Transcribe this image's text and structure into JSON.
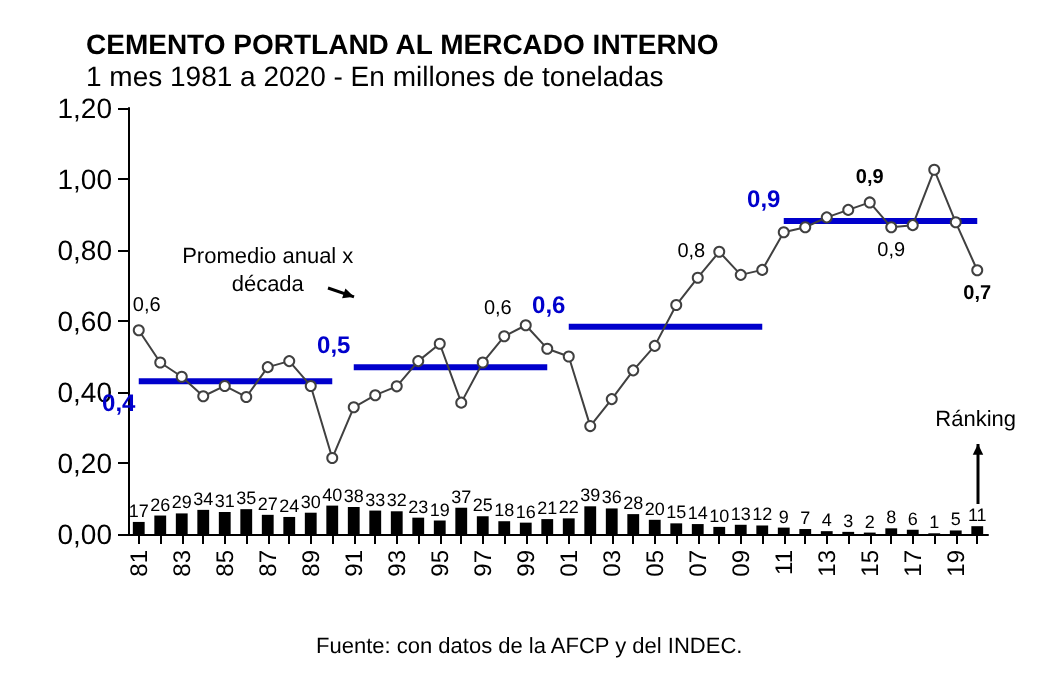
{
  "chart_data": {
    "type": "line",
    "title": "CEMENTO PORTLAND AL MERCADO INTERNO",
    "subtitle": "1 mes 1981 a 2020 - En millones de toneladas",
    "categories": [
      "81",
      null,
      "83",
      null,
      "85",
      null,
      "87",
      null,
      "89",
      null,
      "91",
      null,
      "93",
      null,
      "95",
      null,
      "97",
      null,
      "99",
      null,
      "01",
      null,
      "03",
      null,
      "05",
      null,
      "07",
      null,
      "09",
      null,
      "11",
      null,
      "13",
      null,
      "15",
      null,
      "17",
      null,
      "19",
      null
    ],
    "ylim": [
      0,
      1.2
    ],
    "yticks": [
      {
        "value": 0,
        "label": "0,00"
      },
      {
        "value": 0.2,
        "label": "0,20"
      },
      {
        "value": 0.4,
        "label": "0,40"
      },
      {
        "value": 0.6,
        "label": "0,60"
      },
      {
        "value": 0.8,
        "label": "0,80"
      },
      {
        "value": 1,
        "label": "1,00"
      },
      {
        "value": 1.2,
        "label": "1,20"
      }
    ],
    "y2lim": [
      0,
      600
    ],
    "marker": "circle",
    "annotations": [
      "Promedio anual x década",
      "Ránking",
      "Fuente: con datos de la AFCP y del INDEC."
    ],
    "series": [
      {
        "type": "bar",
        "axis": "y2",
        "color": "#000000",
        "values": [
          17,
          26,
          29,
          34,
          31,
          35,
          27,
          24,
          30,
          40,
          38,
          33,
          32,
          23,
          19,
          37,
          25,
          18,
          16,
          21,
          22,
          39,
          36,
          28,
          20,
          15,
          14,
          10,
          13,
          12,
          9,
          7,
          4,
          3,
          2,
          8,
          6,
          1,
          5,
          11
        ],
        "data_labels": true
      },
      {
        "color": "#404040",
        "values": [
          0.574,
          0.483,
          0.443,
          0.388,
          0.417,
          0.386,
          0.47,
          0.487,
          0.417,
          0.214,
          0.357,
          0.391,
          0.416,
          0.487,
          0.536,
          0.37,
          0.483,
          0.557,
          0.588,
          0.522,
          0.5,
          0.304,
          0.38,
          0.461,
          0.53,
          0.645,
          0.722,
          0.795,
          0.73,
          0.744,
          0.85,
          0.864,
          0.892,
          0.913,
          0.934,
          0.864,
          0.87,
          1.026,
          0.878,
          0.743
        ],
        "value_labels": [
          "0,6",
          null,
          null,
          null,
          null,
          null,
          null,
          null,
          null,
          null,
          null,
          null,
          null,
          null,
          null,
          null,
          null,
          null,
          "0,6",
          null,
          null,
          null,
          null,
          null,
          null,
          null,
          null,
          "0,8",
          null,
          null,
          null,
          null,
          null,
          null,
          "0,9",
          "0,9",
          null,
          null,
          null,
          "0,7"
        ]
      },
      {
        "type": "line",
        "color": "#0000cc",
        "marker": "none",
        "values": [
          0.43,
          0.43,
          0.43,
          0.43,
          0.43,
          0.43,
          0.43,
          0.43,
          0.43,
          0.43,
          null,
          null,
          null,
          null,
          null,
          null,
          null,
          null,
          null,
          null,
          null,
          null,
          null,
          null,
          null,
          null,
          null,
          null,
          null,
          null,
          null,
          null,
          null,
          null,
          null,
          null,
          null,
          null,
          null,
          null
        ],
        "value_labels": [
          "0,4",
          null,
          null,
          null,
          null,
          null,
          null,
          null,
          null,
          null,
          null,
          null,
          null,
          null,
          null,
          null,
          null,
          null,
          null,
          null,
          null,
          null,
          null,
          null,
          null,
          null,
          null,
          null,
          null,
          null,
          null,
          null,
          null,
          null,
          null,
          null,
          null,
          null,
          null,
          null
        ]
      },
      {
        "type": "line",
        "color": "#0000cc",
        "marker": "none",
        "values": [
          null,
          null,
          null,
          null,
          null,
          null,
          null,
          null,
          null,
          null,
          0.47,
          0.47,
          0.47,
          0.47,
          0.47,
          0.47,
          0.47,
          0.47,
          0.47,
          0.47,
          null,
          null,
          null,
          null,
          null,
          null,
          null,
          null,
          null,
          null,
          null,
          null,
          null,
          null,
          null,
          null,
          null,
          null,
          null,
          null
        ],
        "value_labels": [
          null,
          null,
          null,
          null,
          null,
          null,
          null,
          null,
          null,
          null,
          "0,5",
          null,
          null,
          null,
          null,
          null,
          null,
          null,
          null,
          null,
          null,
          null,
          null,
          null,
          null,
          null,
          null,
          null,
          null,
          null,
          null,
          null,
          null,
          null,
          null,
          null,
          null,
          null,
          null,
          null
        ]
      },
      {
        "type": "line",
        "color": "#0000cc",
        "marker": "none",
        "values": [
          null,
          null,
          null,
          null,
          null,
          null,
          null,
          null,
          null,
          null,
          null,
          null,
          null,
          null,
          null,
          null,
          null,
          null,
          null,
          null,
          0.584,
          0.584,
          0.584,
          0.584,
          0.584,
          0.584,
          0.584,
          0.584,
          0.584,
          0.584,
          null,
          null,
          null,
          null,
          null,
          null,
          null,
          null,
          null,
          null
        ],
        "value_labels": [
          null,
          null,
          null,
          null,
          null,
          null,
          null,
          null,
          null,
          null,
          null,
          null,
          null,
          null,
          null,
          null,
          null,
          null,
          null,
          null,
          "0,6",
          null,
          null,
          null,
          null,
          null,
          null,
          null,
          null,
          null,
          null,
          null,
          null,
          null,
          null,
          null,
          null,
          null,
          null,
          null
        ]
      },
      {
        "type": "line",
        "color": "#0000cc",
        "marker": "none",
        "values": [
          null,
          null,
          null,
          null,
          null,
          null,
          null,
          null,
          null,
          null,
          null,
          null,
          null,
          null,
          null,
          null,
          null,
          null,
          null,
          null,
          null,
          null,
          null,
          null,
          null,
          null,
          null,
          null,
          null,
          null,
          0.882,
          0.882,
          0.882,
          0.882,
          0.882,
          0.882,
          0.882,
          0.882,
          0.882,
          0.882
        ],
        "value_labels": [
          null,
          null,
          null,
          null,
          null,
          null,
          null,
          null,
          null,
          null,
          null,
          null,
          null,
          null,
          null,
          null,
          null,
          null,
          null,
          null,
          null,
          null,
          null,
          null,
          null,
          null,
          null,
          null,
          null,
          null,
          "0,9",
          null,
          null,
          null,
          null,
          null,
          null,
          null,
          null,
          null
        ]
      }
    ]
  }
}
